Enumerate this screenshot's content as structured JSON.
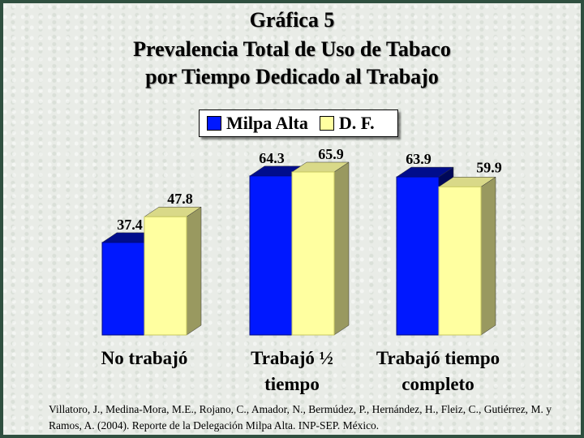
{
  "titles": [
    "Gráfica 5",
    "Prevalencia Total de Uso de Tabaco",
    "por Tiempo Dedicado al Trabajo"
  ],
  "legend": [
    {
      "label": "Milpa Alta",
      "color": "#0018ff"
    },
    {
      "label": "D. F.",
      "color": "#ffffa0"
    }
  ],
  "category_labels": [
    [
      "No trabajó"
    ],
    [
      "Trabajó ½",
      "tiempo"
    ],
    [
      "Trabajó tiempo",
      "completo"
    ]
  ],
  "credit": "Villatoro, J., Medina-Mora, M.E., Rojano, C., Amador, N., Bermúdez, P., Hernández, H., Fleiz, C., Gutiérrez, M. y Ramos, A. (2004). Reporte de la Delegación Milpa Alta. INP-SEP. México.",
  "chart_data": {
    "type": "bar",
    "title": "Gráfica 5 Prevalencia Total de Uso de Tabaco por Tiempo Dedicado al Trabajo",
    "categories": [
      "No trabajó",
      "Trabajó ½ tiempo",
      "Trabajó tiempo completo"
    ],
    "series": [
      {
        "name": "Milpa Alta",
        "values": [
          37.4,
          64.3,
          63.9
        ],
        "color": "#0018ff"
      },
      {
        "name": "D. F.",
        "values": [
          47.8,
          65.9,
          59.9
        ],
        "color": "#ffffa0"
      }
    ],
    "grid": false,
    "legend": "top"
  }
}
